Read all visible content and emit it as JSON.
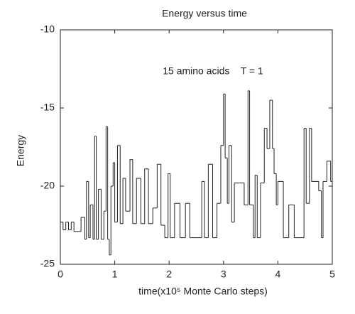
{
  "chart_data": {
    "type": "line",
    "drawstyle": "steps",
    "title": "Energy versus time",
    "annotation": "15 amino acids    T = 1",
    "xlabel": "time(x10⁵ Monte Carlo steps)",
    "ylabel": "Energy",
    "xlim": [
      0,
      5
    ],
    "xticks": [
      0,
      1,
      2,
      3,
      4,
      5
    ],
    "ylim": [
      -25,
      -10
    ],
    "yticks": [
      -25,
      -20,
      -15,
      -10
    ],
    "x": [
      0,
      0.05,
      0.1,
      0.15,
      0.2,
      0.25,
      0.3,
      0.38,
      0.45,
      0.48,
      0.52,
      0.55,
      0.6,
      0.63,
      0.66,
      0.7,
      0.75,
      0.8,
      0.84,
      0.87,
      0.9,
      0.93,
      0.97,
      1.0,
      1.05,
      1.1,
      1.15,
      1.2,
      1.28,
      1.33,
      1.4,
      1.48,
      1.55,
      1.62,
      1.7,
      1.78,
      1.85,
      1.92,
      1.98,
      2.02,
      2.1,
      2.2,
      2.3,
      2.38,
      2.5,
      2.6,
      2.65,
      2.72,
      2.8,
      2.88,
      2.95,
      3.0,
      3.03,
      3.07,
      3.1,
      3.15,
      3.2,
      3.35,
      3.38,
      3.45,
      3.48,
      3.55,
      3.58,
      3.62,
      3.68,
      3.75,
      3.8,
      3.85,
      3.9,
      3.93,
      3.97,
      4.0,
      4.1,
      4.2,
      4.3,
      4.4,
      4.48,
      4.52,
      4.58,
      4.62,
      4.68,
      4.75,
      4.8,
      4.83,
      4.9,
      4.97
    ],
    "series": [
      {
        "name": "Energy",
        "color": "#222222",
        "values": [
          -22.3,
          -22.8,
          -22.3,
          -22.8,
          -22.3,
          -22.9,
          -22.9,
          -22,
          -23.4,
          -19.7,
          -23.3,
          -21.2,
          -23.4,
          -16.8,
          -23.4,
          -20.2,
          -23.4,
          -21.6,
          -16.2,
          -23.4,
          -24.4,
          -20,
          -18.5,
          -22.3,
          -17.4,
          -22.4,
          -19.5,
          -21.6,
          -18.3,
          -22.4,
          -19.5,
          -22.4,
          -18.9,
          -22.4,
          -21.4,
          -18.6,
          -22.5,
          -23.3,
          -19.2,
          -23.3,
          -21.1,
          -23.3,
          -21.1,
          -23.3,
          -23.3,
          -19.7,
          -23.3,
          -18.6,
          -23.3,
          -21.1,
          -17.4,
          -14.1,
          -18.2,
          -21.1,
          -17.4,
          -22.3,
          -19.8,
          -19.8,
          -21.2,
          -13.9,
          -21.2,
          -23.3,
          -19.3,
          -23.3,
          -19.8,
          -16.3,
          -17.6,
          -14.5,
          -17.6,
          -19.2,
          -21.2,
          -19.7,
          -23.3,
          -21.2,
          -23.3,
          -23.3,
          -16.3,
          -21.1,
          -16.3,
          -19.7,
          -19.7,
          -20.3,
          -23.3,
          -19.7,
          -18.4,
          -19.7
        ]
      }
    ]
  }
}
